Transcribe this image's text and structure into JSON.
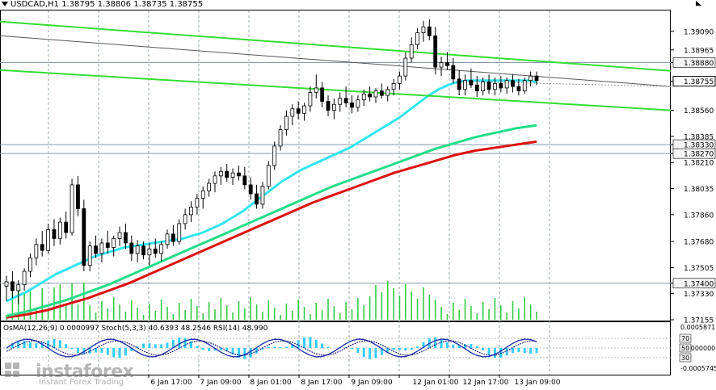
{
  "header": {
    "symbol": "USDCAD,H1",
    "open": "1.38795",
    "high": "1.38806",
    "low": "1.38735",
    "close": "1.38755"
  },
  "indicators_label": {
    "osma": "OsMA(12,26,9) 0.0000997",
    "stoch": "Stoch(5,3,3) 40.6393 48.2546",
    "rsi": "RSI(14) 48.990"
  },
  "watermark": {
    "brand": "instaforex",
    "tagline": "Instant Forex Trading"
  },
  "colors": {
    "candle": "#000000",
    "ma_fast": "#33e5f0",
    "ma_mid": "#22dd88",
    "ma_slow": "#dd1111",
    "channel": "#33dd33",
    "volume": "#33cc44",
    "hist": "#33ccff",
    "stoch_main": "#2233aa",
    "stoch_signal": "#111177",
    "level_line": "#8899aa"
  },
  "chart_data": {
    "type": "candlestick",
    "title": "USDCAD,H1",
    "ylim": [
      1.37155,
      1.39235
    ],
    "y_ticks": [
      "1.39090",
      "1.38965",
      "1.38880",
      "1.38755",
      "1.38560",
      "1.38385",
      "1.38330",
      "1.38270",
      "1.38210",
      "1.38035",
      "1.37860",
      "1.37680",
      "1.37505",
      "1.37400",
      "1.37330",
      "1.37155"
    ],
    "highlighted_levels": [
      "1.38880",
      "1.38330",
      "1.38270",
      "1.37400"
    ],
    "current_price": "1.38755",
    "x_ticks": [
      "6 Jan 17:00",
      "7 Jan 09:00",
      "8 Jan 01:00",
      "8 Jan 17:00",
      "9 Jan 09:00",
      "12 Jan 01:00",
      "12 Jan 17:00",
      "13 Jan 09:00"
    ],
    "candles": [
      [
        1.3738,
        1.3745,
        1.3728,
        1.3741
      ],
      [
        1.3741,
        1.3748,
        1.373,
        1.3735
      ],
      [
        1.3735,
        1.3742,
        1.3726,
        1.3739
      ],
      [
        1.3739,
        1.375,
        1.3735,
        1.3748
      ],
      [
        1.3748,
        1.376,
        1.3744,
        1.3757
      ],
      [
        1.3757,
        1.377,
        1.3752,
        1.3766
      ],
      [
        1.3766,
        1.3775,
        1.3758,
        1.3762
      ],
      [
        1.3762,
        1.378,
        1.376,
        1.3776
      ],
      [
        1.3776,
        1.3783,
        1.3765,
        1.377
      ],
      [
        1.377,
        1.3784,
        1.3766,
        1.3781
      ],
      [
        1.3781,
        1.3788,
        1.377,
        1.3774
      ],
      [
        1.3774,
        1.381,
        1.3772,
        1.3806
      ],
      [
        1.3806,
        1.3812,
        1.3785,
        1.379
      ],
      [
        1.379,
        1.3796,
        1.3748,
        1.3752
      ],
      [
        1.3752,
        1.3768,
        1.3748,
        1.3765
      ],
      [
        1.3765,
        1.3772,
        1.3757,
        1.376
      ],
      [
        1.376,
        1.377,
        1.3754,
        1.3767
      ],
      [
        1.3767,
        1.3775,
        1.376,
        1.3764
      ],
      [
        1.3764,
        1.3772,
        1.3758,
        1.377
      ],
      [
        1.377,
        1.3778,
        1.3765,
        1.3774
      ],
      [
        1.3774,
        1.378,
        1.3763,
        1.3767
      ],
      [
        1.3767,
        1.3772,
        1.3755,
        1.376
      ],
      [
        1.376,
        1.3769,
        1.3754,
        1.3765
      ],
      [
        1.3765,
        1.3768,
        1.3756,
        1.3759
      ],
      [
        1.3759,
        1.3767,
        1.3752,
        1.3763
      ],
      [
        1.3763,
        1.377,
        1.3757,
        1.376
      ],
      [
        1.376,
        1.3768,
        1.3755,
        1.3766
      ],
      [
        1.3766,
        1.3776,
        1.3763,
        1.3773
      ],
      [
        1.3773,
        1.3779,
        1.3765,
        1.3768
      ],
      [
        1.3768,
        1.3783,
        1.3766,
        1.378
      ],
      [
        1.378,
        1.379,
        1.3776,
        1.3786
      ],
      [
        1.3786,
        1.3795,
        1.3781,
        1.3791
      ],
      [
        1.3791,
        1.38,
        1.3786,
        1.3797
      ],
      [
        1.3797,
        1.3805,
        1.379,
        1.3802
      ],
      [
        1.3802,
        1.381,
        1.3798,
        1.3807
      ],
      [
        1.3807,
        1.3815,
        1.3801,
        1.3812
      ],
      [
        1.3812,
        1.3818,
        1.3806,
        1.3815
      ],
      [
        1.3815,
        1.382,
        1.3808,
        1.3811
      ],
      [
        1.3811,
        1.3817,
        1.3806,
        1.3814
      ],
      [
        1.3814,
        1.3819,
        1.3809,
        1.3812
      ],
      [
        1.3812,
        1.3818,
        1.3803,
        1.3806
      ],
      [
        1.3806,
        1.3811,
        1.3796,
        1.38
      ],
      [
        1.38,
        1.3806,
        1.379,
        1.3793
      ],
      [
        1.3793,
        1.3808,
        1.379,
        1.3805
      ],
      [
        1.3805,
        1.3822,
        1.3803,
        1.3819
      ],
      [
        1.3819,
        1.3835,
        1.3816,
        1.3832
      ],
      [
        1.3832,
        1.3846,
        1.3829,
        1.3843
      ],
      [
        1.3843,
        1.3856,
        1.3839,
        1.3852
      ],
      [
        1.3852,
        1.386,
        1.3846,
        1.3857
      ],
      [
        1.3857,
        1.3862,
        1.385,
        1.3854
      ],
      [
        1.3854,
        1.3861,
        1.3849,
        1.3859
      ],
      [
        1.3859,
        1.3872,
        1.3855,
        1.3868
      ],
      [
        1.3868,
        1.388,
        1.3864,
        1.3871
      ],
      [
        1.3871,
        1.3875,
        1.3858,
        1.3862
      ],
      [
        1.3862,
        1.3866,
        1.3852,
        1.3856
      ],
      [
        1.3856,
        1.3864,
        1.385,
        1.386
      ],
      [
        1.386,
        1.3868,
        1.3855,
        1.3864
      ],
      [
        1.3864,
        1.3872,
        1.3858,
        1.3861
      ],
      [
        1.3861,
        1.3866,
        1.3854,
        1.3858
      ],
      [
        1.3858,
        1.3866,
        1.3855,
        1.3863
      ],
      [
        1.3863,
        1.387,
        1.3859,
        1.3867
      ],
      [
        1.3867,
        1.3872,
        1.3862,
        1.3865
      ],
      [
        1.3865,
        1.3871,
        1.3861,
        1.3869
      ],
      [
        1.3869,
        1.3874,
        1.3864,
        1.3866
      ],
      [
        1.3866,
        1.3872,
        1.3862,
        1.387
      ],
      [
        1.387,
        1.3877,
        1.3866,
        1.3874
      ],
      [
        1.3874,
        1.3882,
        1.387,
        1.3879
      ],
      [
        1.3879,
        1.3895,
        1.3876,
        1.3891
      ],
      [
        1.3891,
        1.3905,
        1.3888,
        1.39
      ],
      [
        1.39,
        1.3911,
        1.3897,
        1.3908
      ],
      [
        1.3908,
        1.3916,
        1.3902,
        1.3912
      ],
      [
        1.3912,
        1.3917,
        1.3903,
        1.3906
      ],
      [
        1.3906,
        1.3912,
        1.388,
        1.3885
      ],
      [
        1.3885,
        1.3892,
        1.3879,
        1.3888
      ],
      [
        1.3888,
        1.3895,
        1.3883,
        1.3886
      ],
      [
        1.3886,
        1.3891,
        1.3874,
        1.3877
      ],
      [
        1.3877,
        1.3883,
        1.3866,
        1.387
      ],
      [
        1.387,
        1.388,
        1.3866,
        1.3876
      ],
      [
        1.3876,
        1.3884,
        1.3871,
        1.3873
      ],
      [
        1.3873,
        1.3879,
        1.3865,
        1.3869
      ],
      [
        1.3869,
        1.3878,
        1.3866,
        1.3875
      ],
      [
        1.3875,
        1.388,
        1.3867,
        1.387
      ],
      [
        1.387,
        1.3878,
        1.3866,
        1.3874
      ],
      [
        1.3874,
        1.3879,
        1.3868,
        1.3871
      ],
      [
        1.3871,
        1.3878,
        1.3867,
        1.3876
      ],
      [
        1.3876,
        1.388,
        1.3868,
        1.3872
      ],
      [
        1.3872,
        1.3877,
        1.3866,
        1.3869
      ],
      [
        1.3869,
        1.3878,
        1.3867,
        1.3876
      ],
      [
        1.3876,
        1.3882,
        1.3872,
        1.3879
      ],
      [
        1.3879,
        1.3882,
        1.3873,
        1.3876
      ]
    ],
    "ma_fast": [
      1.3728,
      1.3731,
      1.3734,
      1.3738,
      1.3742,
      1.3746,
      1.3749,
      1.3752,
      1.3755,
      1.3758,
      1.376,
      1.3762,
      1.3764,
      1.3765,
      1.3766,
      1.3767,
      1.3768,
      1.3769,
      1.377,
      1.3772,
      1.3774,
      1.3777,
      1.378,
      1.3784,
      1.3788,
      1.3793,
      1.3798,
      1.3803,
      1.3808,
      1.3812,
      1.3816,
      1.3819,
      1.3822,
      1.3825,
      1.3828,
      1.3831,
      1.3835,
      1.3839,
      1.3843,
      1.3847,
      1.3851,
      1.3856,
      1.3861,
      1.3866,
      1.387,
      1.3873,
      1.3875,
      1.3876,
      1.3876,
      1.3876,
      1.3876,
      1.3876,
      1.3876,
      1.3876,
      1.3875
    ],
    "ma_mid": [
      1.3718,
      1.3721,
      1.3725,
      1.3729,
      1.3734,
      1.3739,
      1.3745,
      1.3751,
      1.3757,
      1.3763,
      1.3769,
      1.3775,
      1.3781,
      1.3787,
      1.3793,
      1.3799,
      1.3805,
      1.381,
      1.3815,
      1.382,
      1.3825,
      1.383,
      1.3834,
      1.3838,
      1.3841,
      1.3844,
      1.3846
    ],
    "ma_slow": [
      1.3717,
      1.3719,
      1.3722,
      1.3726,
      1.373,
      1.3735,
      1.374,
      1.3746,
      1.3752,
      1.3758,
      1.3764,
      1.377,
      1.3776,
      1.3782,
      1.3788,
      1.3794,
      1.3799,
      1.3804,
      1.3809,
      1.3814,
      1.3818,
      1.3822,
      1.3826,
      1.3829,
      1.3831,
      1.3833,
      1.3835
    ],
    "indicator_levels": [
      "0.0005871",
      "0.0000000",
      "-0.0005745"
    ],
    "stoch_levels": [
      "70",
      "50",
      "30"
    ]
  }
}
